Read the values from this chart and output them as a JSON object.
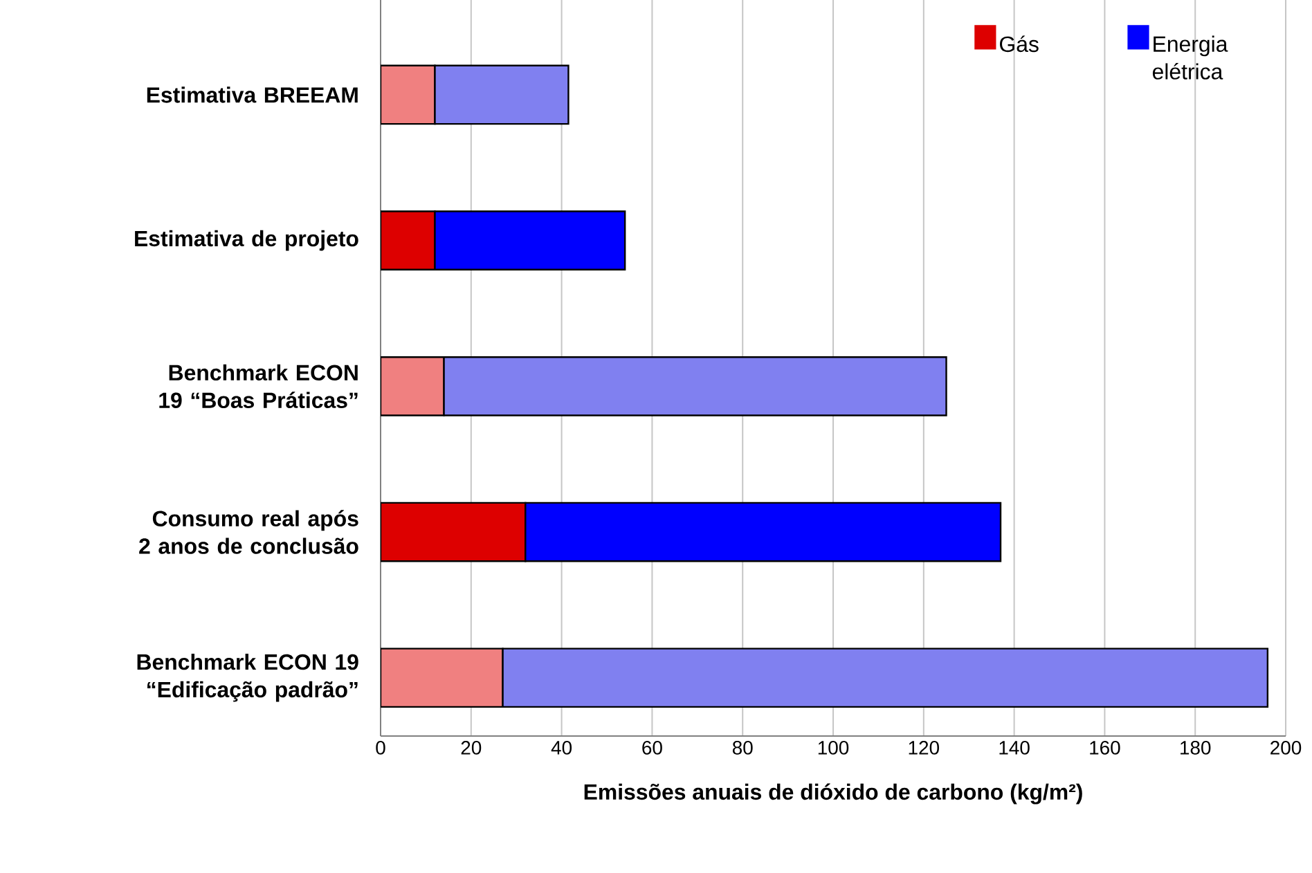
{
  "chart_data": {
    "type": "bar",
    "orientation": "horizontal",
    "stacked": true,
    "categories": [
      "Estimativa BREEAM",
      "Estimativa de projeto",
      "Benchmark ECON 19 “Boas Práticas”",
      "Consumo real após 2 anos de conclusão",
      "Benchmark ECON 19 “Edificação padrão”"
    ],
    "series": [
      {
        "name": "Gás",
        "color": "#dd0000",
        "colors": [
          "#f08080",
          "#dd0000",
          "#f08080",
          "#dd0000",
          "#f08080"
        ],
        "values": [
          12,
          12,
          14,
          32,
          27
        ]
      },
      {
        "name": "Energia elétrica",
        "color": "#0000ff",
        "colors": [
          "#8080f0",
          "#0000ff",
          "#8080f0",
          "#0000ff",
          "#8080f0"
        ],
        "values": [
          29.5,
          42,
          111,
          105,
          169
        ]
      }
    ],
    "xlabel": "Emissões anuais de dióxido de carbono (kg/m²)",
    "xlim": [
      0,
      200
    ],
    "xticks": [
      0,
      20,
      40,
      60,
      80,
      100,
      120,
      140,
      160,
      180,
      200
    ],
    "grid": "x",
    "legend": "top right"
  }
}
